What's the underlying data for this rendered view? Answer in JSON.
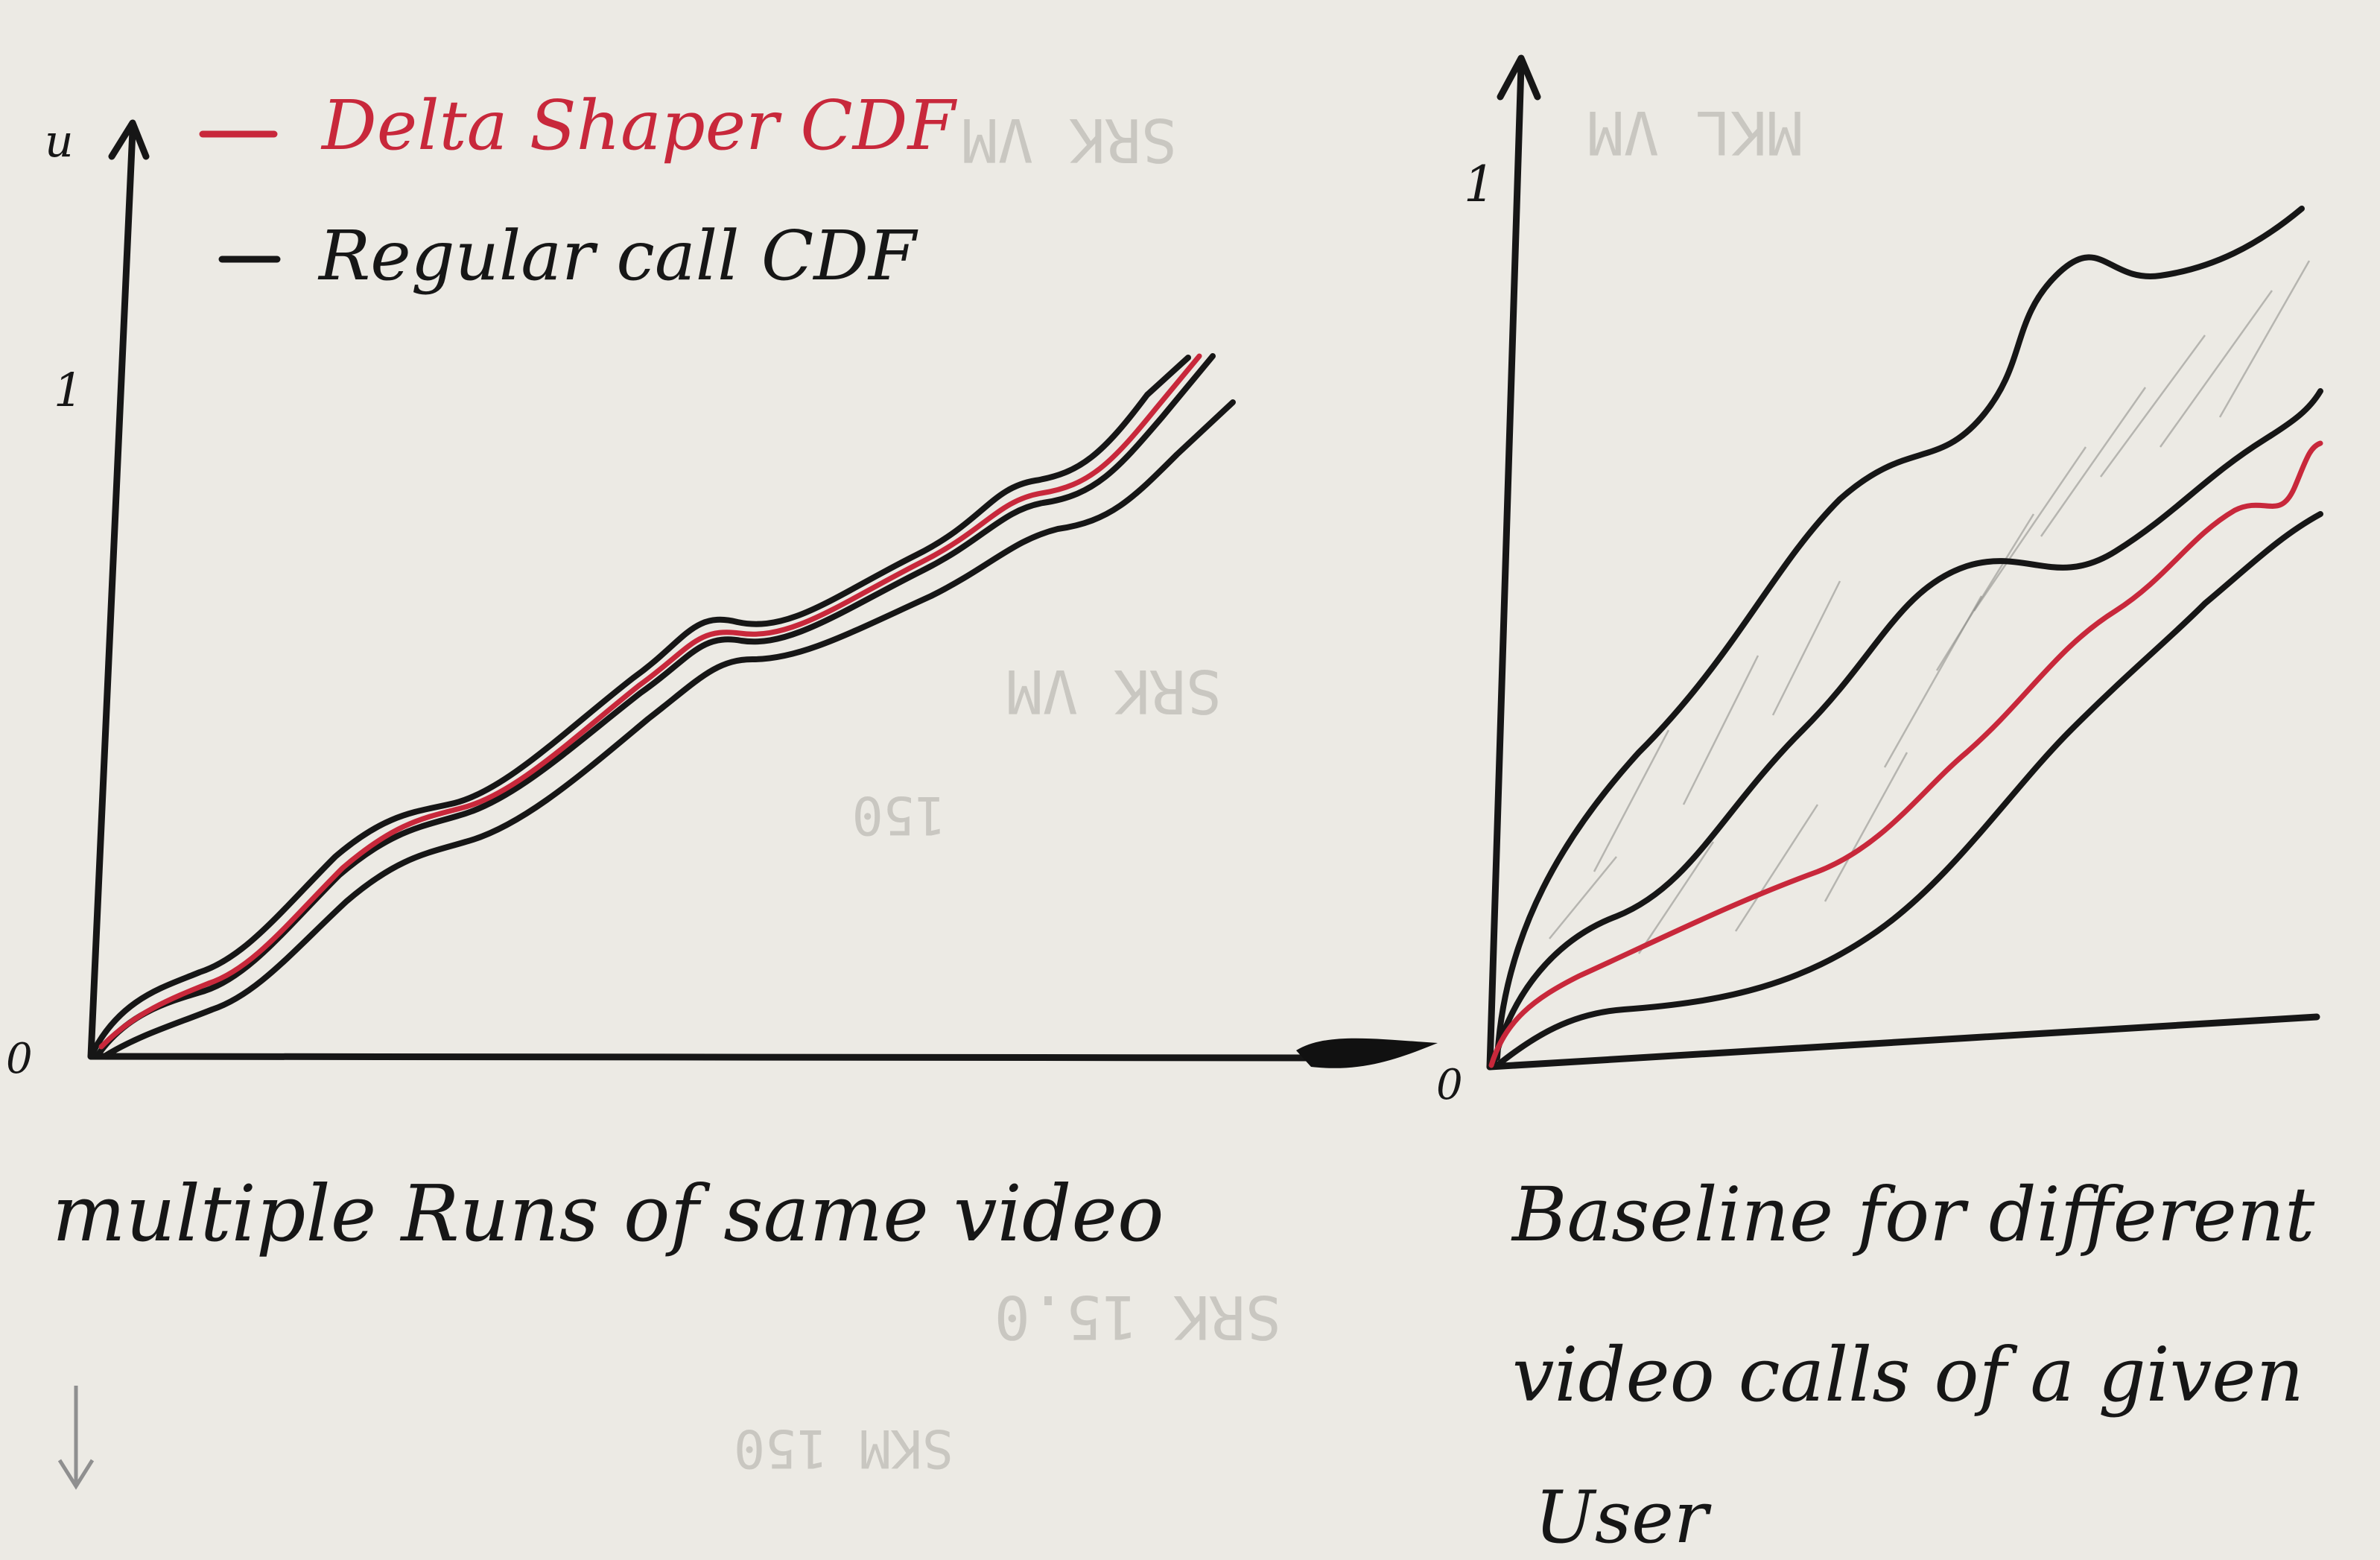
{
  "legend": {
    "red_label": "Delta Shaper CDF",
    "black_label": "Regular call CDF"
  },
  "left_plot": {
    "y_top_label": "1",
    "origin_label": "0",
    "caption": "multiple Runs of same video",
    "series_count": {
      "red": 1,
      "black": 3
    }
  },
  "right_plot": {
    "y_top_label": "1",
    "origin_label": "0",
    "caption_line1": "Baseline for different",
    "caption_line2": "video calls of a given",
    "caption_line3": "User",
    "series_count": {
      "red": 1,
      "black": 4
    }
  },
  "colors": {
    "ink": "#161616",
    "red_ink": "#c8283b",
    "paper": "#eceae4",
    "pencil_bleed": "#c9c7c1"
  },
  "bleed_through": {
    "items": [
      "SRK VM",
      "MKL VM",
      "SRK VM",
      "SRK 15.0",
      "150",
      "SKM 150"
    ]
  }
}
